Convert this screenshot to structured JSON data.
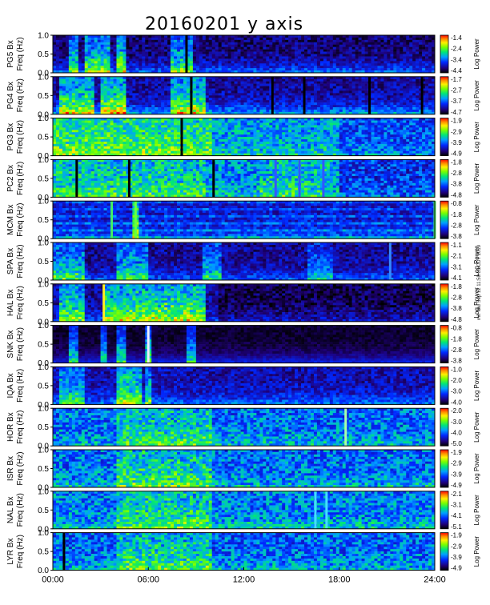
{
  "title": "20160201 y axis",
  "stamp": "mit Thu Sep 12 11:59:03 CDT 2019",
  "x_ticks": [
    "00:00",
    "06:00",
    "12:00",
    "18:00",
    "24:00"
  ],
  "y_ticks": [
    "1.0",
    "0.5",
    "0.0"
  ],
  "chart_data": {
    "type": "heatmap",
    "title": "20160201 y axis",
    "x_range_hours": [
      0,
      24
    ],
    "y_range_hz": [
      0.0,
      1.0
    ],
    "colorbar_label": "Log Power",
    "panels": [
      {
        "station": "PG5",
        "ylabel": "PG5 Bx Freq (Hz)",
        "cbar": [
          "-1.4",
          "-2.4",
          "-3.4",
          "-4.4"
        ],
        "bg": 0.12,
        "noise": 0.1,
        "events": [
          [
            1.0,
            1.6,
            0.35
          ],
          [
            2.0,
            3.5,
            0.4
          ],
          [
            4.0,
            4.6,
            0.45
          ],
          [
            7.5,
            8.8,
            0.35
          ]
        ],
        "streaks": [
          [
            8.4,
            "black"
          ]
        ],
        "banded": false,
        "lowfreq": 0.25,
        "dark_after": null,
        "low_after": null
      },
      {
        "station": "PG4",
        "ylabel": "PG4 Bx Freq (Hz)",
        "cbar": [
          "-1.7",
          "-2.7",
          "-3.7",
          "-4.7"
        ],
        "bg": 0.16,
        "noise": 0.1,
        "events": [
          [
            0.5,
            2.5,
            0.4
          ],
          [
            3.0,
            4.5,
            0.45
          ],
          [
            7.5,
            9.5,
            0.4
          ]
        ],
        "streaks": [
          [
            8.7,
            "black"
          ],
          [
            13.8,
            "black"
          ],
          [
            15.8,
            "black"
          ],
          [
            19.9,
            "black"
          ],
          [
            23.2,
            "black"
          ]
        ],
        "banded": false,
        "lowfreq": 0.3,
        "dark_after": null,
        "low_after": null
      },
      {
        "station": "PG3",
        "ylabel": "PG3 Bx Freq (Hz)",
        "cbar": [
          "-1.9",
          "-2.9",
          "-3.9",
          "-4.9"
        ],
        "bg": 0.42,
        "noise": 0.14,
        "events": [
          [
            0.0,
            10.0,
            0.18
          ],
          [
            4.0,
            8.0,
            0.12
          ]
        ],
        "streaks": [
          [
            8.1,
            "black"
          ]
        ],
        "banded": false,
        "lowfreq": 0.1,
        "dark_after": null,
        "low_after": [
          18.0,
          0.1
        ]
      },
      {
        "station": "PC2",
        "ylabel": "PC2 Bx Freq (Hz)",
        "cbar": [
          "-1.8",
          "-2.8",
          "-3.8",
          "-4.8"
        ],
        "bg": 0.4,
        "noise": 0.15,
        "events": [
          [
            0.0,
            9.5,
            0.12
          ],
          [
            13.0,
            17.5,
            0.1
          ]
        ],
        "streaks": [
          [
            1.5,
            "black"
          ],
          [
            4.8,
            "black"
          ],
          [
            10.1,
            "black"
          ],
          [
            14.0,
            "#3355ff"
          ],
          [
            15.5,
            "#3355ff"
          ],
          [
            17.0,
            "#3355ff"
          ]
        ],
        "banded": false,
        "lowfreq": 0.1,
        "dark_after": null,
        "low_after": [
          18.0,
          0.12
        ]
      },
      {
        "station": "MCM",
        "ylabel": "MCM Bx Freq (Hz)",
        "cbar": [
          "-0.8",
          "-1.8",
          "-2.8",
          "-3.8"
        ],
        "bg": 0.22,
        "noise": 0.1,
        "events": [
          [
            5.0,
            5.4,
            0.4
          ]
        ],
        "streaks": [
          [
            5.2,
            "#66ff44"
          ],
          [
            3.7,
            "#44ee66"
          ],
          [
            24.0,
            "#44ee66"
          ]
        ],
        "banded": true,
        "lowfreq": 0.15,
        "dark_after": null,
        "low_after": null
      },
      {
        "station": "SPA",
        "ylabel": "SPA Bx Freq (Hz)",
        "cbar": [
          "-1.1",
          "-2.1",
          "-3.1",
          "-4.1"
        ],
        "bg": 0.15,
        "noise": 0.1,
        "events": [
          [
            0.0,
            2.0,
            0.3
          ],
          [
            4.0,
            6.0,
            0.3
          ],
          [
            9.5,
            10.5,
            0.25
          ],
          [
            16.0,
            17.5,
            0.2
          ]
        ],
        "streaks": [
          [
            21.2,
            "#3388ff"
          ]
        ],
        "banded": false,
        "lowfreq": 0.2,
        "dark_after": null,
        "low_after": null
      },
      {
        "station": "HAL",
        "ylabel": "HAL Bx Freq (Hz)",
        "cbar": [
          "-1.8",
          "-2.8",
          "-3.8",
          "-4.8"
        ],
        "bg": 0.16,
        "noise": 0.1,
        "events": [
          [
            0.5,
            2.0,
            0.4
          ],
          [
            3.2,
            9.5,
            0.45
          ]
        ],
        "streaks": [
          [
            3.2,
            "#ffee22"
          ]
        ],
        "banded": false,
        "lowfreq": 0.15,
        "dark_after": [
          10.5,
          0.08
        ],
        "low_after": null
      },
      {
        "station": "SNK",
        "ylabel": "SNK Bx Freq (Hz)",
        "cbar": [
          "-0.8",
          "-1.8",
          "-2.8",
          "-3.8"
        ],
        "bg": 0.05,
        "noise": 0.04,
        "events": [
          [
            1.0,
            1.5,
            0.35
          ],
          [
            3.0,
            3.4,
            0.35
          ],
          [
            4.0,
            4.5,
            0.4
          ],
          [
            5.8,
            6.2,
            0.45
          ],
          [
            8.5,
            9.0,
            0.35
          ]
        ],
        "streaks": [
          [
            6.0,
            "#eeeeff"
          ]
        ],
        "banded": false,
        "lowfreq": 0.22,
        "dark_after": null,
        "low_after": null
      },
      {
        "station": "IQA",
        "ylabel": "IQA Bx Freq (Hz)",
        "cbar": [
          "-1.0",
          "-2.0",
          "-3.0",
          "-4.0"
        ],
        "bg": 0.18,
        "noise": 0.1,
        "events": [
          [
            0.5,
            2.0,
            0.3
          ],
          [
            4.0,
            5.5,
            0.4
          ],
          [
            5.8,
            6.2,
            0.3
          ]
        ],
        "streaks": [],
        "banded": false,
        "lowfreq": 0.2,
        "dark_after": null,
        "low_after": null
      },
      {
        "station": "HOR",
        "ylabel": "HOR Bx Freq (Hz)",
        "cbar": [
          "-2.0",
          "-3.0",
          "-4.0",
          "-5.0"
        ],
        "bg": 0.36,
        "noise": 0.15,
        "events": [
          [
            4.0,
            10.0,
            0.16
          ]
        ],
        "streaks": [
          [
            18.4,
            "#aaffaa"
          ]
        ],
        "banded": false,
        "lowfreq": 0.12,
        "dark_after": null,
        "low_after": null
      },
      {
        "station": "ISR",
        "ylabel": "ISR Bx Freq (Hz)",
        "cbar": [
          "-1.9",
          "-2.9",
          "-3.9",
          "-4.9"
        ],
        "bg": 0.36,
        "noise": 0.15,
        "events": [
          [
            4.0,
            10.0,
            0.18
          ]
        ],
        "streaks": [],
        "banded": false,
        "lowfreq": 0.12,
        "dark_after": null,
        "low_after": null
      },
      {
        "station": "NAL",
        "ylabel": "NAL Bx Freq (Hz)",
        "cbar": [
          "-2.1",
          "-3.1",
          "-4.1",
          "-5.1"
        ],
        "bg": 0.38,
        "noise": 0.15,
        "events": [
          [
            4.0,
            10.0,
            0.16
          ]
        ],
        "streaks": [
          [
            16.5,
            "#44ddff"
          ],
          [
            17.2,
            "#44ddff"
          ]
        ],
        "banded": false,
        "lowfreq": 0.12,
        "dark_after": null,
        "low_after": null
      },
      {
        "station": "LYR",
        "ylabel": "LYR Bx Freq (Hz)",
        "cbar": [
          "-1.9",
          "-2.9",
          "-3.9",
          "-4.9"
        ],
        "bg": 0.35,
        "noise": 0.15,
        "events": [
          [
            4.0,
            10.0,
            0.18
          ]
        ],
        "streaks": [
          [
            0.7,
            "black"
          ]
        ],
        "banded": false,
        "lowfreq": 0.12,
        "dark_after": null,
        "low_after": null
      }
    ]
  }
}
